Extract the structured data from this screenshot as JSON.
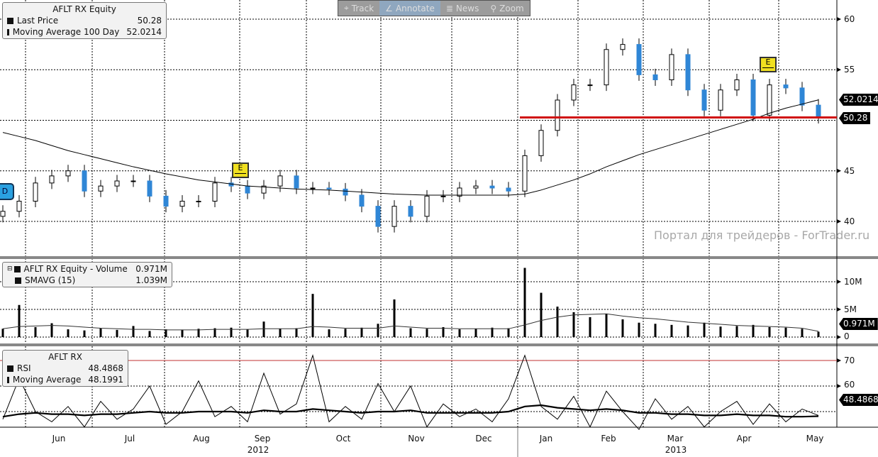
{
  "toolbar": {
    "track": "Track",
    "annotate": "Annotate",
    "news": "News",
    "zoom": "Zoom"
  },
  "price_legend": {
    "title": "AFLT RX Equity",
    "last_price_label": "Last Price",
    "last_price": "50.28",
    "ma_label": "Moving Average 100 Day",
    "ma_value": "52.0214"
  },
  "volume_legend": {
    "title": "AFLT RX Equity - Volume",
    "volume": "0.971M",
    "sma_label": "SMAVG (15)",
    "sma_value": "1.039M"
  },
  "rsi_legend": {
    "title": "AFLT RX",
    "rsi_label": "RSI",
    "rsi_value": "48.4868",
    "ma_label": "Moving Average",
    "ma_value": "48.1991"
  },
  "watermark": "Портал для трейдеров - ForTrader.ru",
  "markers": {
    "earnings": "E",
    "dividend": "D"
  },
  "tags": {
    "ma": "52.0214",
    "last": "50.28",
    "volume": "0.971M",
    "rsi": "48.4868"
  },
  "colors": {
    "down_candle": "#2f86d6",
    "up_candle": "#ffffff",
    "support_line": "#d01010",
    "rsi_70_line": "#c03030"
  },
  "chart_data": [
    {
      "type": "candlestick",
      "title": "AFLT RX Equity",
      "yticks": [
        "60",
        "55",
        "45",
        "40"
      ],
      "ylim": [
        38,
        61.5
      ],
      "grid": true,
      "x_labels": [
        "Jun",
        "Jul",
        "Aug",
        "Sep",
        "Oct",
        "Nov",
        "Dec",
        "Jan",
        "Feb",
        "Mar",
        "Apr",
        "May"
      ],
      "years": [
        "2012",
        "2013"
      ],
      "series": [
        {
          "name": "Last Price",
          "values": [
            41,
            42,
            43.8,
            44.5,
            45,
            43,
            43.5,
            44,
            44,
            42.5,
            41.5,
            42,
            42,
            43.8,
            43.5,
            42.8,
            43.5,
            44.5,
            43.3,
            43.3,
            43.2,
            42.6,
            41.5,
            39.5,
            41.5,
            40.5,
            42.5,
            42.5,
            43.3,
            43.5,
            43.3,
            43,
            46.5,
            49,
            52,
            53.5,
            53.5,
            57,
            57.5,
            54.5,
            54,
            56.5,
            53,
            51,
            53,
            54,
            50.5,
            53.5,
            53.2,
            51.5,
            50.28
          ]
        },
        {
          "name": "Moving Average 100 Day",
          "values": [
            48.8,
            48.4,
            48,
            47.5,
            47,
            46.6,
            46.2,
            45.8,
            45.4,
            45.05,
            44.7,
            44.4,
            44.1,
            43.9,
            43.7,
            43.5,
            43.4,
            43.3,
            43.2,
            43.15,
            43.1,
            43.0,
            42.9,
            42.8,
            42.7,
            42.65,
            42.6,
            42.6,
            42.6,
            42.6,
            42.6,
            42.6,
            42.7,
            43.1,
            43.6,
            44.1,
            44.7,
            45.4,
            46,
            46.6,
            47.1,
            47.6,
            48.1,
            48.6,
            49.1,
            49.6,
            50.1,
            50.7,
            51.2,
            51.6,
            52.02
          ]
        }
      ],
      "support_level": 50.28
    },
    {
      "type": "bar",
      "title": "AFLT RX Equity - Volume",
      "yticks": [
        "10M",
        "5M",
        "0"
      ],
      "ylim": [
        0,
        13
      ],
      "series": [
        {
          "name": "Volume",
          "values": [
            1.5,
            5.8,
            1.8,
            2.5,
            1.4,
            1.2,
            1.6,
            1.3,
            2,
            1.1,
            1.4,
            1.3,
            1.5,
            1.6,
            1.7,
            1.4,
            2.8,
            1.5,
            1.6,
            7.8,
            1.4,
            1.5,
            1.7,
            2.4,
            6.8,
            1.6,
            1.5,
            1.8,
            1.4,
            1.5,
            1.7,
            1.6,
            12.5,
            8,
            5.5,
            4.5,
            3.6,
            4.2,
            3.2,
            2.6,
            2.4,
            2.2,
            2.1,
            2.6,
            1.9,
            2.0,
            2.2,
            1.8,
            1.7,
            1.5,
            0.971
          ]
        },
        {
          "name": "SMAVG (15)",
          "values": [
            1.5,
            1.9,
            2,
            2.1,
            2.0,
            1.8,
            1.6,
            1.5,
            1.4,
            1.4,
            1.3,
            1.3,
            1.3,
            1.4,
            1.4,
            1.4,
            1.5,
            1.5,
            1.5,
            1.9,
            1.8,
            1.6,
            1.6,
            1.6,
            2.0,
            1.8,
            1.6,
            1.6,
            1.5,
            1.5,
            1.5,
            1.5,
            2.2,
            3.0,
            3.6,
            4.0,
            4.1,
            4.2,
            3.8,
            3.5,
            3.3,
            3.0,
            2.7,
            2.5,
            2.3,
            2.1,
            2.0,
            1.9,
            1.8,
            1.6,
            1.039
          ]
        }
      ]
    },
    {
      "type": "line",
      "title": "AFLT RX",
      "yticks": [
        "70",
        "60"
      ],
      "ylim": [
        38,
        72
      ],
      "reference_line": 70,
      "series": [
        {
          "name": "RSI",
          "values": [
            47,
            63,
            50,
            46,
            52,
            44,
            54,
            47,
            51,
            60,
            45,
            50,
            62,
            48,
            52,
            46,
            65,
            49,
            53,
            72,
            46,
            52,
            47,
            61,
            50,
            60,
            44,
            53,
            48,
            51,
            46,
            55,
            72,
            52,
            47,
            56,
            44,
            58,
            50,
            43,
            55,
            47,
            52,
            44,
            50,
            54,
            45,
            53,
            46,
            51,
            48.4868
          ]
        },
        {
          "name": "Moving Average",
          "values": [
            48,
            49,
            49.5,
            49,
            49,
            48.5,
            49,
            49,
            49.5,
            50,
            49.5,
            49.5,
            50,
            50,
            50,
            49.5,
            50.5,
            50,
            50,
            51,
            50.5,
            50,
            49.5,
            50,
            50,
            50.5,
            49.5,
            49.5,
            49.5,
            49.5,
            49.5,
            50,
            52,
            52.5,
            51.5,
            51,
            50.5,
            51,
            50.5,
            49.5,
            49.5,
            49,
            49,
            48.5,
            48.5,
            49,
            48.5,
            48.5,
            48,
            48,
            48.1991
          ]
        }
      ]
    }
  ]
}
